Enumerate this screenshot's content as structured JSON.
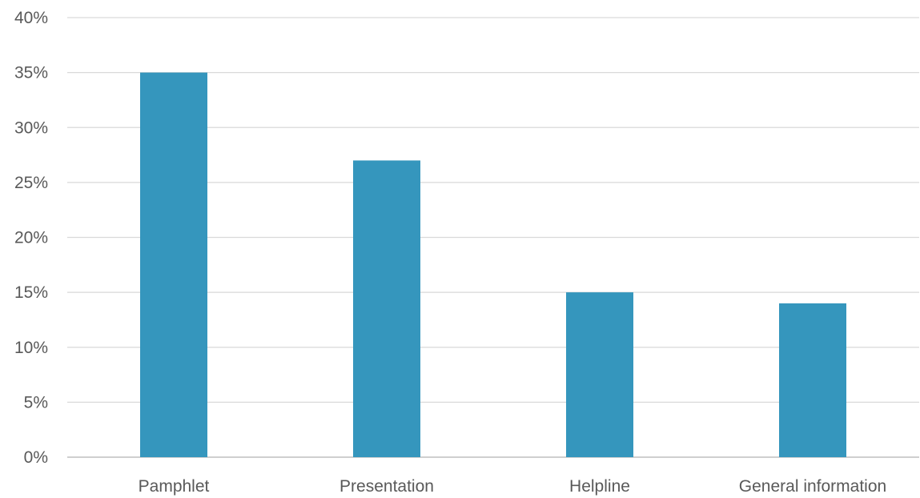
{
  "chart_data": {
    "type": "bar",
    "categories": [
      "Pamphlet",
      "Presentation",
      "Helpline",
      "General information"
    ],
    "values": [
      35,
      27,
      15,
      14
    ],
    "ylim": [
      0,
      40
    ],
    "yticks": [
      0,
      5,
      10,
      15,
      20,
      25,
      30,
      35,
      40
    ],
    "ytick_labels": [
      "0%",
      "5%",
      "10%",
      "15%",
      "20%",
      "25%",
      "30%",
      "35%",
      "40%"
    ],
    "grid": true,
    "legend": "none",
    "bar_color": "#3596bd",
    "title": "",
    "xlabel": "",
    "ylabel": ""
  }
}
